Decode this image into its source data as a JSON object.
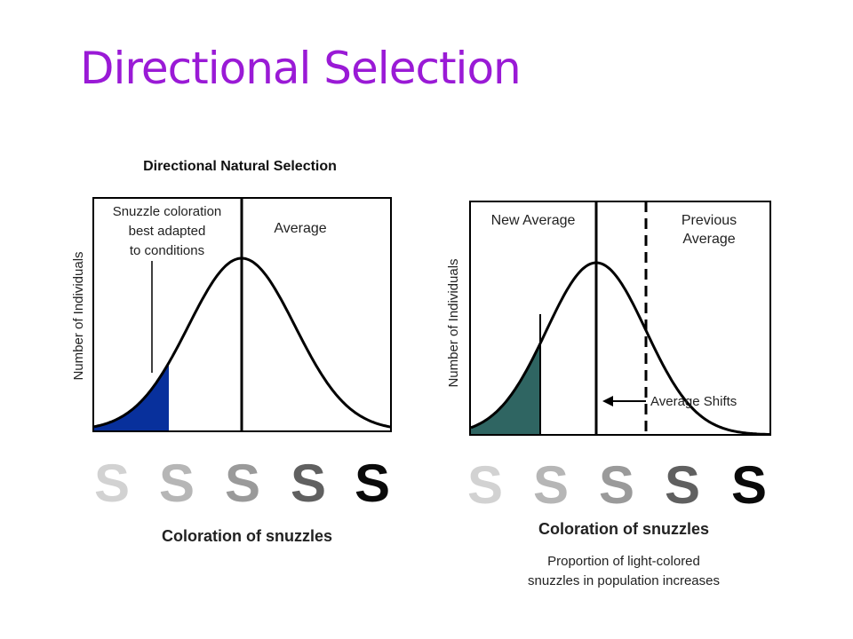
{
  "slide": {
    "title": "Directional Selection"
  },
  "left_panel": {
    "heading": "Directional Natural Selection",
    "annotation_lines": [
      "Snuzzle coloration",
      "best adapted",
      "to conditions"
    ],
    "average_label": "Average",
    "y_label": "Number of Individuals",
    "x_label": "Coloration of snuzzles",
    "fill_color": "#08309c"
  },
  "right_panel": {
    "new_average_label": "New Average",
    "previous_average_lines": [
      "Previous",
      "Average"
    ],
    "shift_label": "Average Shifts",
    "y_label": "Number of Individuals",
    "x_label": "Coloration of snuzzles",
    "caption_lines": [
      "Proportion of light-colored",
      "snuzzles in population increases"
    ],
    "fill_color": "#2f6562"
  },
  "scale": {
    "glyph": "S",
    "shades": [
      "#d2d2d2",
      "#b6b6b6",
      "#9a9a9a",
      "#606060",
      "#0a0a0a"
    ]
  }
}
